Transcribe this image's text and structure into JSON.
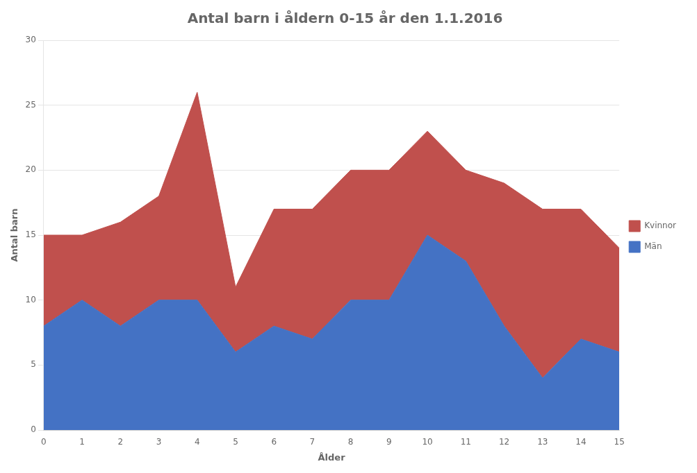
{
  "chart_data": {
    "type": "area",
    "title": "Antal barn i åldern 0-15 år den 1.1.2016",
    "xlabel": "Ålder",
    "ylabel": "Antal barn",
    "x": [
      0,
      1,
      2,
      3,
      4,
      5,
      6,
      7,
      8,
      9,
      10,
      11,
      12,
      13,
      14,
      15
    ],
    "series": [
      {
        "name": "Män",
        "color": "#4472C4",
        "values": [
          8,
          10,
          8,
          10,
          10,
          6,
          8,
          7,
          10,
          10,
          15,
          13,
          8,
          4,
          7,
          6
        ]
      },
      {
        "name": "Kvinnor",
        "color": "#C0504D",
        "values": [
          7,
          5,
          8,
          8,
          16,
          5,
          9,
          10,
          10,
          10,
          8,
          7,
          11,
          13,
          10,
          8
        ]
      }
    ],
    "xlim": [
      0,
      15
    ],
    "xticks": [
      0,
      1,
      2,
      3,
      4,
      5,
      6,
      7,
      8,
      9,
      10,
      11,
      12,
      13,
      14,
      15
    ],
    "ylim": [
      0,
      30
    ],
    "yticks": [
      0,
      5,
      10,
      15,
      20,
      25,
      30
    ],
    "stacked": true,
    "grid": "y",
    "legend": "right"
  }
}
